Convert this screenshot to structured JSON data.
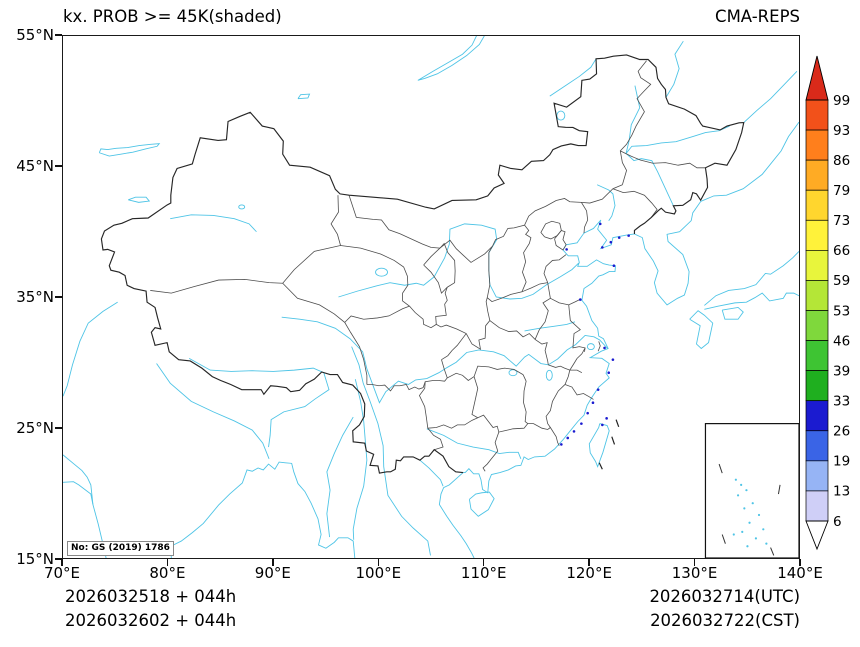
{
  "header": {
    "title_left": "kx. PROB >= 45K(shaded)",
    "title_right": "CMA-REPS"
  },
  "axes": {
    "lat_ticks": [
      "55°N",
      "45°N",
      "35°N",
      "25°N",
      "15°N"
    ],
    "lon_ticks": [
      "70°E",
      "80°E",
      "90°E",
      "100°E",
      "110°E",
      "120°E",
      "130°E",
      "140°E"
    ]
  },
  "colorbar": {
    "levels": [
      "99",
      "93",
      "86",
      "79",
      "73",
      "66",
      "59",
      "53",
      "46",
      "39",
      "33",
      "26",
      "19",
      "13",
      "6"
    ],
    "colors_top_to_bottom": [
      "#d92a1a",
      "#f2511a",
      "#ff7f1c",
      "#ffab24",
      "#ffd62e",
      "#fff23a",
      "#e8f53c",
      "#b4e637",
      "#7fd83c",
      "#3ec433",
      "#1faf1f",
      "#1b1bd0",
      "#3a64e6",
      "#96b4f5",
      "#cfcff7",
      "#ffffff"
    ]
  },
  "footer": {
    "left_line1": "2026032518  +  044h",
    "left_line2": "2026032602  +  044h",
    "right_line1": "2026032714(UTC)",
    "right_line2": "2026032722(CST)"
  },
  "map_note": {
    "license": "No: GS (2019) 1786"
  },
  "chart_data": {
    "type": "heatmap",
    "title": "kx. PROB >= 45K(shaded)",
    "model": "CMA-REPS",
    "variable": "Ensemble probability of K index >= 45K (%), shaded",
    "init_times": [
      "2026032518 + 044h",
      "2026032602 + 044h"
    ],
    "valid_times": [
      "2026032714(UTC)",
      "2026032722(CST)"
    ],
    "lon_range": [
      70,
      140
    ],
    "lat_range": [
      15,
      55
    ],
    "prob_levels": [
      6,
      13,
      19,
      26,
      33,
      39,
      46,
      53,
      59,
      66,
      73,
      79,
      86,
      93,
      99
    ],
    "legend_position": "right",
    "basemap": "China province boundaries (dark gray) with coastlines, rivers and lakes (cyan); South China Sea inset box at lower right",
    "shading_summary": "Field almost entirely below lowest contour (<6%); only isolated low-probability specks (about 6-33%) along the southeast China coast (Fujian/Guangdong), near Taiwan, and along the Liaodong/Bohai coast."
  }
}
